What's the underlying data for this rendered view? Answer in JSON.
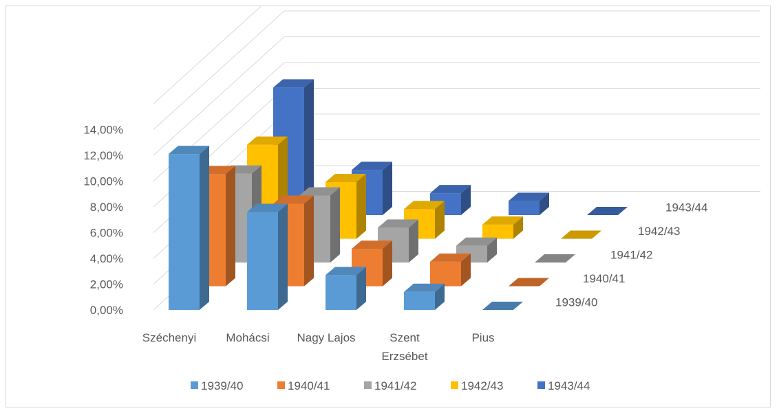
{
  "chart_data": {
    "type": "bar",
    "subtype": "3d-column",
    "title": "",
    "xlabel": "",
    "ylabel": "",
    "ylim": [
      0,
      0.14
    ],
    "y_ticks": [
      "0,00%",
      "2,00%",
      "4,00%",
      "6,00%",
      "8,00%",
      "10,00%",
      "12,00%",
      "14,00%"
    ],
    "categories": [
      {
        "lines": [
          "Széchenyi"
        ]
      },
      {
        "lines": [
          "Mohácsi"
        ]
      },
      {
        "lines": [
          "Nagy Lajos"
        ]
      },
      {
        "lines": [
          "Szent",
          "Erzsébet"
        ]
      },
      {
        "lines": [
          "Pius"
        ]
      }
    ],
    "series": [
      {
        "name": "1939/40",
        "color": "#5b9bd5",
        "values": [
          0.121,
          0.076,
          0.027,
          0.014,
          0.0
        ]
      },
      {
        "name": "1940/41",
        "color": "#ed7d31",
        "values": [
          0.087,
          0.064,
          0.029,
          0.019,
          0.0
        ]
      },
      {
        "name": "1941/42",
        "color": "#a5a5a5",
        "values": [
          0.069,
          0.052,
          0.027,
          0.013,
          0.0
        ]
      },
      {
        "name": "1942/43",
        "color": "#ffc000",
        "values": [
          0.073,
          0.044,
          0.023,
          0.011,
          0.0
        ]
      },
      {
        "name": "1943/44",
        "color": "#4472c4",
        "values": [
          0.099,
          0.035,
          0.017,
          0.011,
          0.0
        ]
      }
    ],
    "grid": true,
    "legend": "bottom"
  }
}
